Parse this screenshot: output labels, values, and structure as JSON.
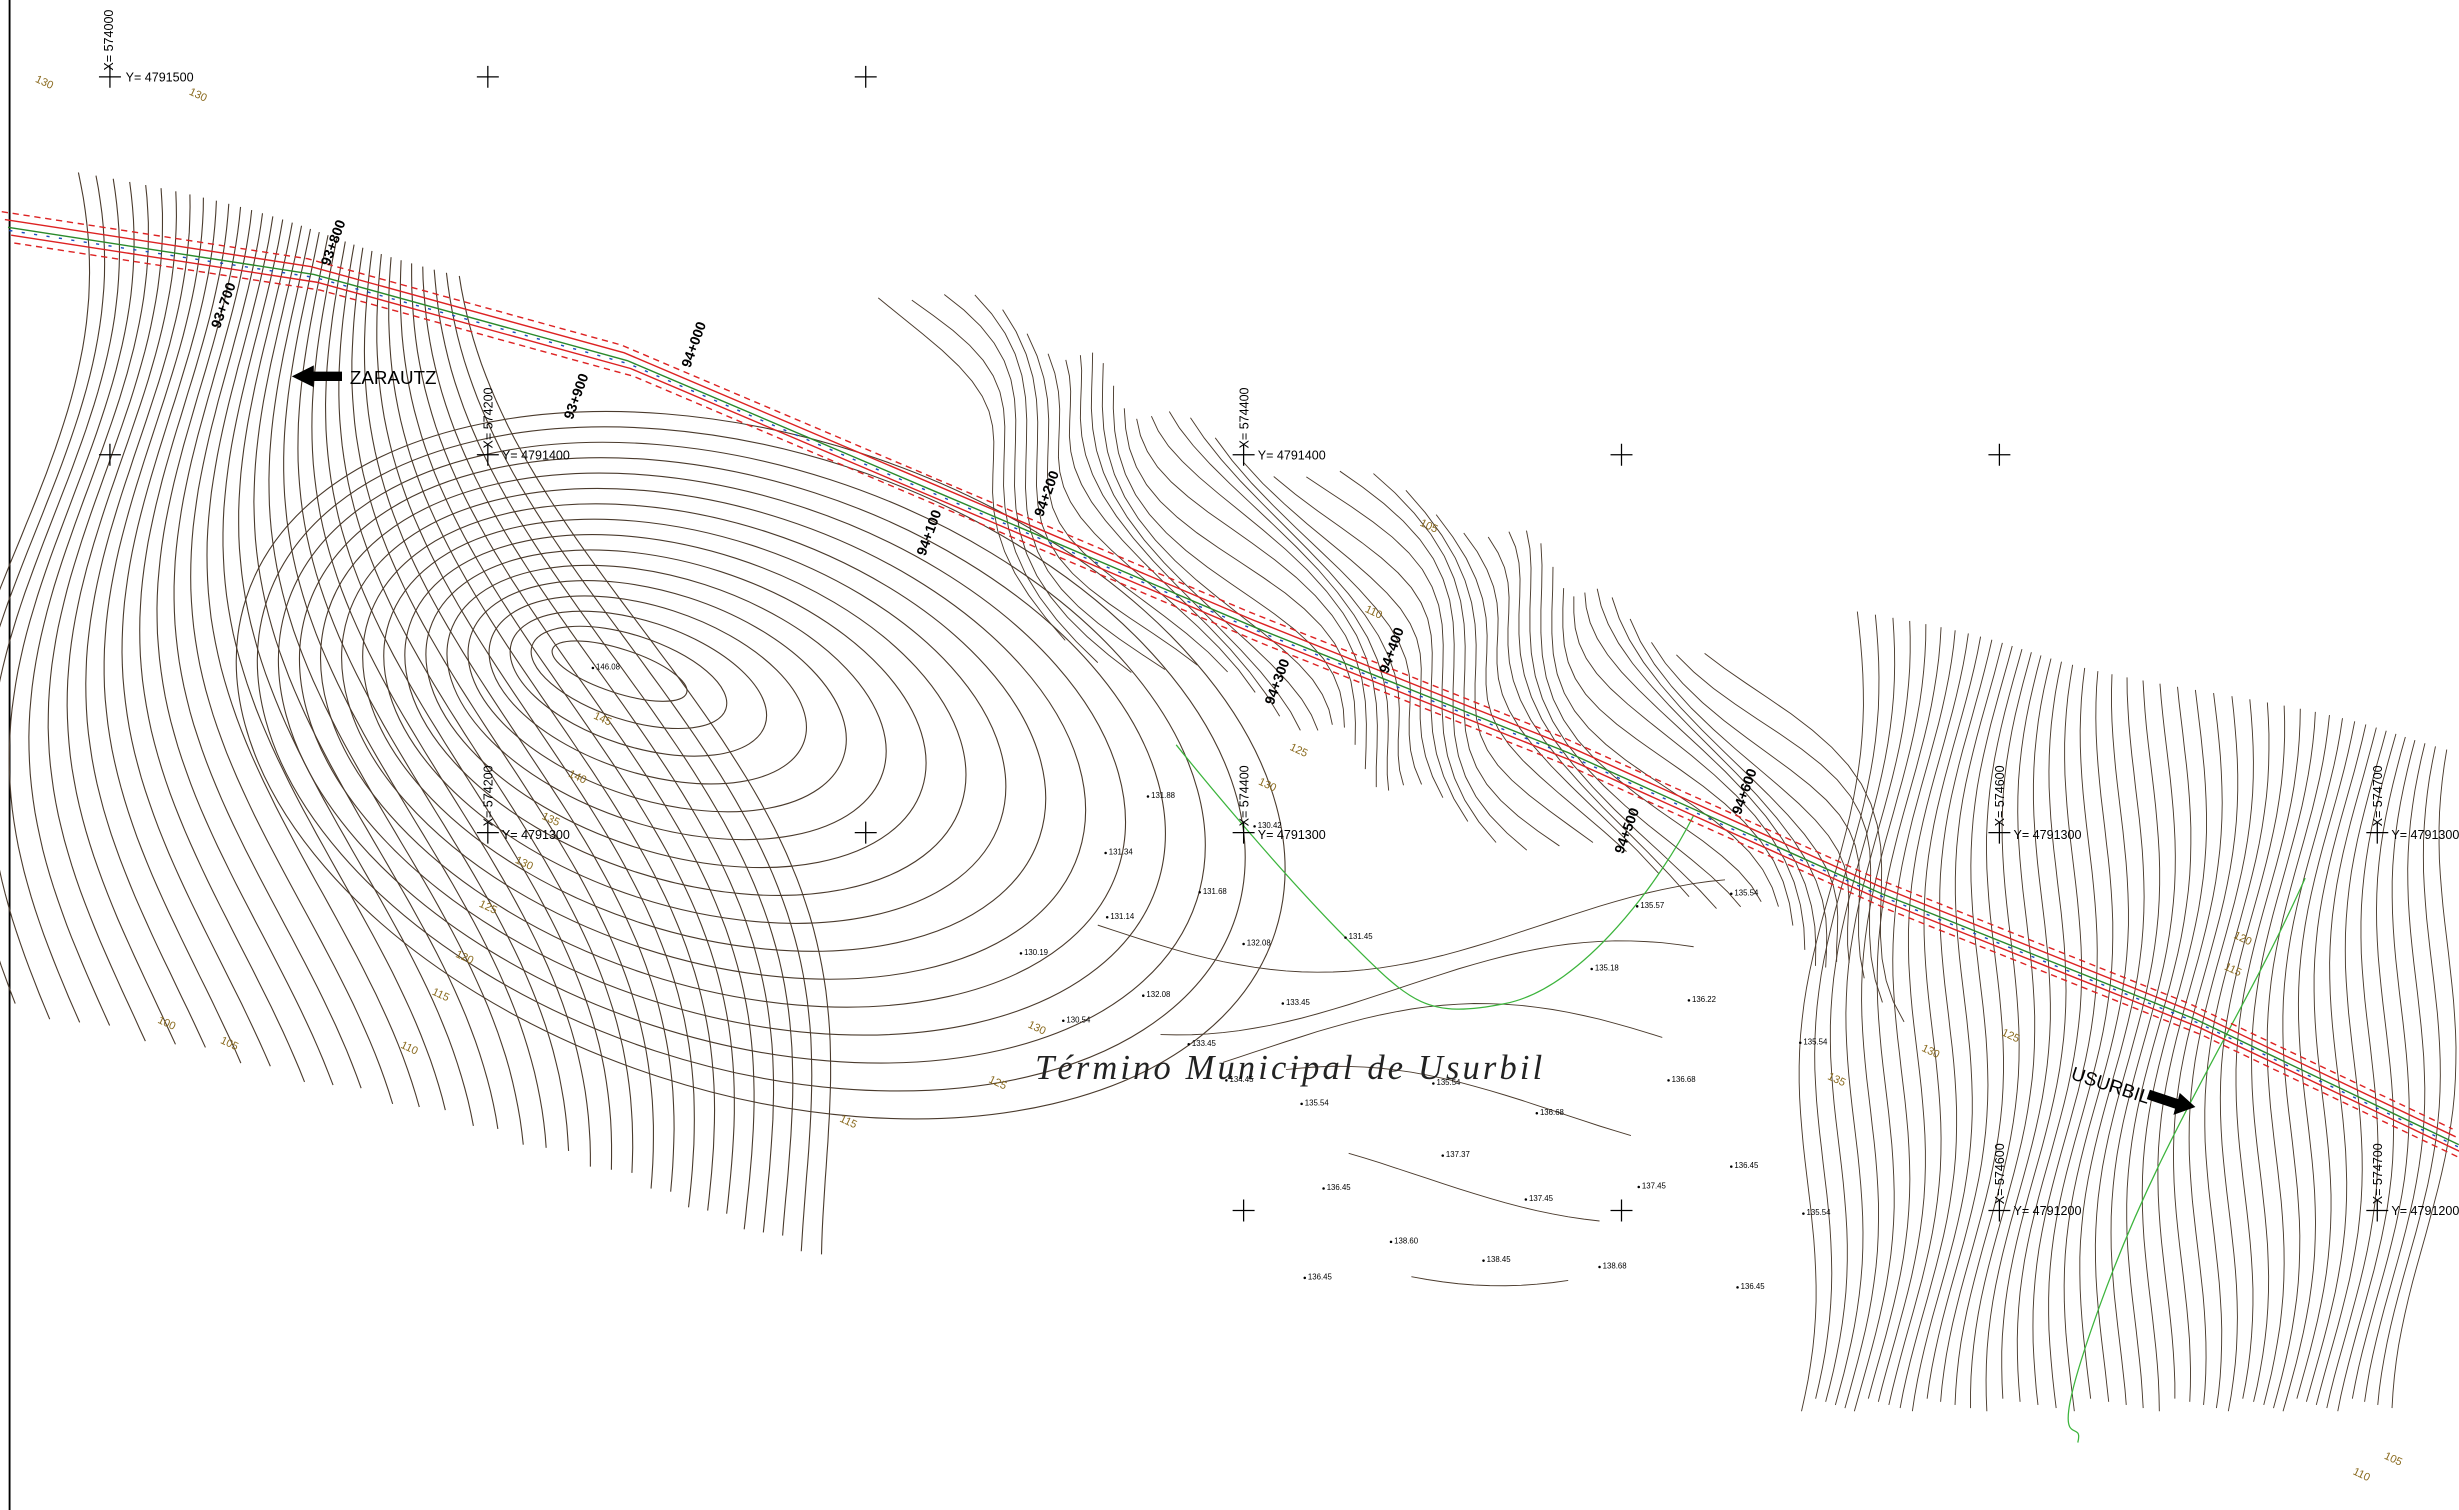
{
  "place_labels": {
    "title": "Término Municipal de Usurbil",
    "west": "ZARAUTZ",
    "east": "USURBIL"
  },
  "coordinates": [
    "X= 574000",
    "Y= 4791500",
    "X= 574200",
    "Y= 4791400",
    "X= 574400",
    "Y= 4791400",
    "X= 574200",
    "Y= 4791300",
    "X= 574400",
    "Y= 4791300",
    "X= 574600",
    "Y= 4791300",
    "X= 574700",
    "Y= 4791300",
    "X= 574600",
    "Y= 4791200",
    "X= 574700",
    "Y= 4791200"
  ],
  "chainages": [
    "93+700",
    "93+800",
    "93+900",
    "94+000",
    "94+100",
    "94+200",
    "94+300",
    "94+400",
    "94+500",
    "94+600"
  ],
  "contour_labels": [
    "130",
    "130",
    "105",
    "110",
    "145",
    "140",
    "135",
    "130",
    "125",
    "120",
    "115",
    "110",
    "105",
    "100",
    "125",
    "130",
    "115",
    "120",
    "125",
    "130",
    "135",
    "125",
    "130",
    "115",
    "110",
    "105"
  ],
  "spot_heights": [
    "146.08",
    "131.88",
    "131.34",
    "131.14",
    "130.19",
    "131.68",
    "132.08",
    "132.08",
    "130.54",
    "133.45",
    "133.45",
    "134.45",
    "135.54",
    "135.54",
    "136.68",
    "137.37",
    "136.45",
    "136.45",
    "138.60",
    "137.45",
    "137.45",
    "138.45",
    "138.68",
    "136.22",
    "136.68",
    "135.54",
    "135.54",
    "136.45",
    "136.45",
    "135.57",
    "135.18",
    "131.45",
    "135.54",
    "130.42"
  ]
}
